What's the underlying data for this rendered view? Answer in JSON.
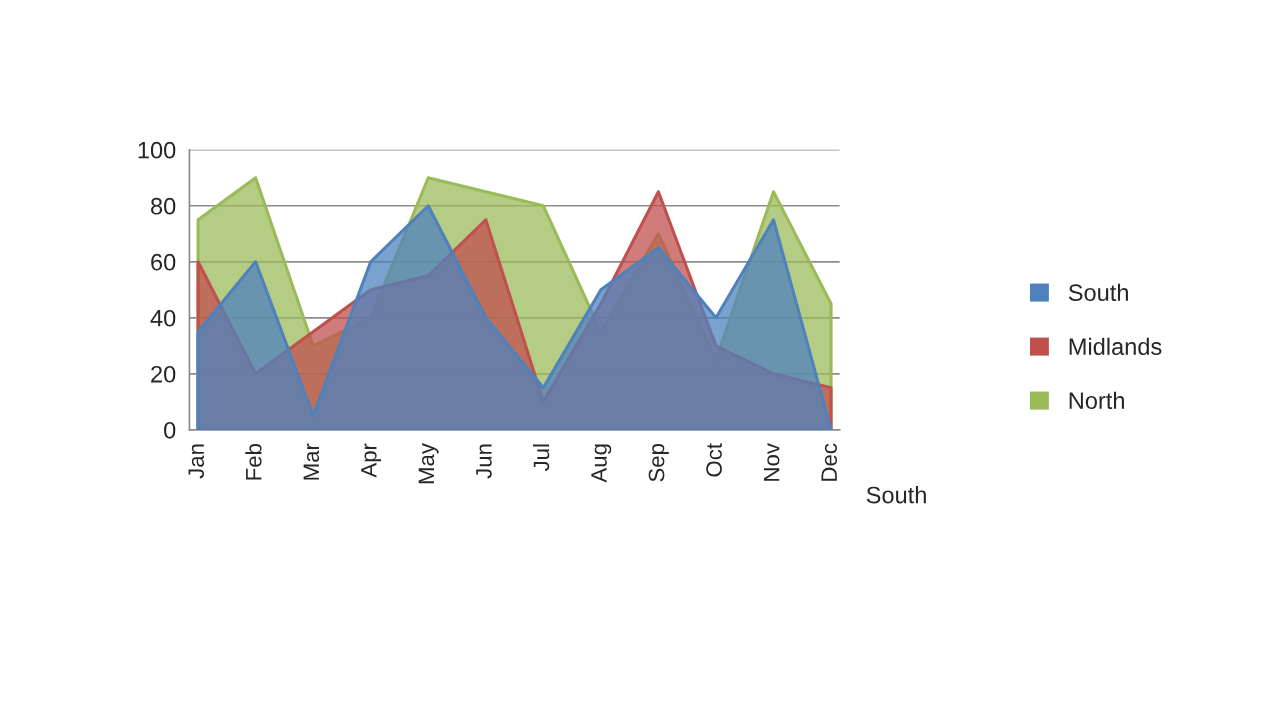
{
  "chart_data": {
    "type": "area",
    "categories": [
      "Jan",
      "Feb",
      "Mar",
      "Apr",
      "May",
      "Jun",
      "Jul",
      "Aug",
      "Sep",
      "Oct",
      "Nov",
      "Dec"
    ],
    "series": [
      {
        "name": "South",
        "color": "#4f81bd",
        "values": [
          35,
          60,
          5,
          60,
          80,
          40,
          15,
          50,
          65,
          40,
          75,
          0
        ]
      },
      {
        "name": "Midlands",
        "color": "#c0504d",
        "values": [
          60,
          20,
          35,
          50,
          55,
          75,
          10,
          45,
          85,
          30,
          20,
          15
        ]
      },
      {
        "name": "North",
        "color": "#9bbb59",
        "values": [
          75,
          90,
          30,
          40,
          90,
          85,
          80,
          35,
          70,
          25,
          85,
          45
        ]
      }
    ],
    "ylim": [
      0,
      100
    ],
    "yticks": [
      0,
      20,
      40,
      60,
      80,
      100
    ],
    "grid": "y",
    "legend": "right",
    "annotations": [
      "South"
    ]
  }
}
